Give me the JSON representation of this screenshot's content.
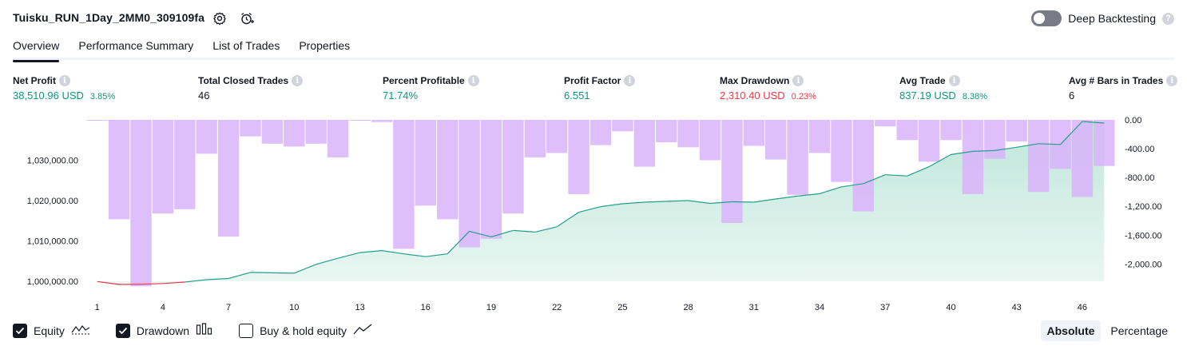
{
  "header": {
    "strategy_name": "Tuisku_RUN_1Day_2MM0_309109fa",
    "deep_backtesting_label": "Deep Backtesting",
    "help_glyph": "?"
  },
  "tabs": [
    {
      "label": "Overview",
      "active": true
    },
    {
      "label": "Performance Summary",
      "active": false
    },
    {
      "label": "List of Trades",
      "active": false
    },
    {
      "label": "Properties",
      "active": false
    }
  ],
  "stats": [
    {
      "label": "Net Profit",
      "value": "38,510.96 USD",
      "pct": "3.85%",
      "color": "green"
    },
    {
      "label": "Total Closed Trades",
      "value": "46",
      "pct": "",
      "color": "neutral"
    },
    {
      "label": "Percent Profitable",
      "value": "71.74%",
      "pct": "",
      "color": "green"
    },
    {
      "label": "Profit Factor",
      "value": "6.551",
      "pct": "",
      "color": "green"
    },
    {
      "label": "Max Drawdown",
      "value": "2,310.40 USD",
      "pct": "0.23%",
      "color": "red"
    },
    {
      "label": "Avg Trade",
      "value": "837.19 USD",
      "pct": "8.38%",
      "color": "green"
    },
    {
      "label": "Avg # Bars in Trades",
      "value": "6",
      "pct": "",
      "color": "neutral"
    }
  ],
  "colors": {
    "green": "#089981",
    "red": "#f23645",
    "drawdown_bar": "#d9b3fb",
    "equity_line": "#22a08a",
    "equity_fill": "#d9f0e9",
    "overlap": "#b3b6e9",
    "text": "#131722",
    "axis_text": "#131722"
  },
  "chart_data": {
    "type": "bar",
    "title": "",
    "x_tick_labels": [
      "1",
      "4",
      "7",
      "10",
      "13",
      "16",
      "19",
      "22",
      "25",
      "28",
      "31",
      "34",
      "37",
      "40",
      "43",
      "46"
    ],
    "left_tick_labels": [
      "1,030,000.00",
      "1,020,000.00",
      "1,010,000.00",
      "1,000,000.00"
    ],
    "right_tick_labels": [
      "0.00",
      "-400.00",
      "-800.00",
      "-1,200.00",
      "-1,600.00",
      "-2,000.00"
    ],
    "left_ylim": [
      1000000,
      1040000
    ],
    "right_ylim": [
      -2240,
      0
    ],
    "series": [
      {
        "name": "Equity",
        "axis": "left",
        "x": [
          1,
          2,
          3,
          4,
          5,
          6,
          7,
          8,
          9,
          10,
          11,
          12,
          13,
          14,
          15,
          16,
          17,
          18,
          19,
          20,
          21,
          22,
          23,
          24,
          25,
          26,
          27,
          28,
          29,
          30,
          31,
          32,
          33,
          34,
          35,
          36,
          37,
          38,
          39,
          40,
          41,
          42,
          43,
          44,
          45,
          46,
          47
        ],
        "values": [
          999950,
          999200,
          999270,
          999450,
          999800,
          1000400,
          1000700,
          1002200,
          1002100,
          1002000,
          1004200,
          1005700,
          1007100,
          1007600,
          1006800,
          1006100,
          1006800,
          1012400,
          1011000,
          1012600,
          1012200,
          1013500,
          1017100,
          1018500,
          1019200,
          1019600,
          1019800,
          1020000,
          1019300,
          1019700,
          1019600,
          1020400,
          1021100,
          1021700,
          1023400,
          1024200,
          1026400,
          1026100,
          1028400,
          1031400,
          1032200,
          1032400,
          1033200,
          1034100,
          1033900,
          1039600,
          1039200
        ]
      },
      {
        "name": "Drawdown",
        "axis": "right",
        "x": [
          1,
          2,
          3,
          4,
          5,
          6,
          7,
          8,
          9,
          10,
          11,
          12,
          13,
          14,
          15,
          16,
          17,
          18,
          19,
          20,
          21,
          22,
          23,
          24,
          25,
          26,
          27,
          28,
          29,
          30,
          31,
          32,
          33,
          34,
          35,
          36,
          37,
          38,
          39,
          40,
          41,
          42,
          43,
          44,
          45,
          46,
          47
        ],
        "values": [
          -10,
          -1380,
          -2310,
          -1300,
          -1240,
          -470,
          -1620,
          -230,
          -330,
          -370,
          -330,
          -520,
          -10,
          -30,
          -1790,
          -1190,
          -1380,
          -1770,
          -1650,
          -1300,
          -520,
          -460,
          -1030,
          -350,
          -160,
          -650,
          -310,
          -380,
          -560,
          -1430,
          -360,
          -550,
          -1040,
          -460,
          -860,
          -1270,
          -90,
          -280,
          -580,
          -280,
          -1030,
          -540,
          -300,
          -1000,
          -680,
          -1070,
          -640
        ]
      }
    ]
  },
  "legend": [
    {
      "label": "Equity",
      "checked": true,
      "icon": "equity-wave-icon"
    },
    {
      "label": "Drawdown",
      "checked": true,
      "icon": "drawdown-bars-icon"
    },
    {
      "label": "Buy & hold equity",
      "checked": false,
      "icon": "buy-hold-line-icon"
    }
  ],
  "modes": [
    {
      "label": "Absolute",
      "active": true
    },
    {
      "label": "Percentage",
      "active": false
    }
  ]
}
